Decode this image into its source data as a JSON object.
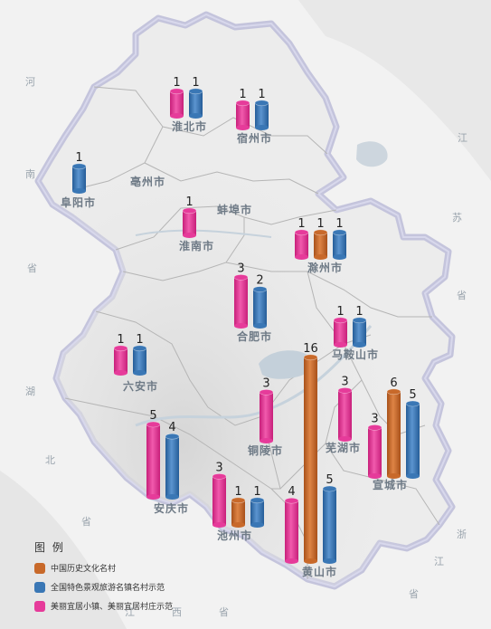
{
  "colors": {
    "history": "#c8692a",
    "scenic": "#3a77b5",
    "beautiful": "#e63b9a",
    "land": "#eeeeee",
    "border": "#c8c8e0",
    "inner_border": "#b8b8b8",
    "water": "#c6d2dc"
  },
  "legend": {
    "title": "图 例",
    "items": [
      {
        "key": "history",
        "label": "中国历史文化名村"
      },
      {
        "key": "scenic",
        "label": "全国特色景观旅游名镇名村示范"
      },
      {
        "key": "beautiful",
        "label": "美丽宜居小镇、美丽宜居村庄示范"
      }
    ]
  },
  "provinces": [
    {
      "text": "河"
    },
    {
      "text": "南"
    },
    {
      "text": "省"
    },
    {
      "text": "湖"
    },
    {
      "text": "北"
    },
    {
      "text": "省"
    },
    {
      "text": "江"
    },
    {
      "text": "苏"
    },
    {
      "text": "省"
    },
    {
      "text": "浙"
    },
    {
      "text": "江"
    },
    {
      "text": "省"
    },
    {
      "text": "江"
    },
    {
      "text": "西"
    },
    {
      "text": "省"
    }
  ],
  "cities": [
    {
      "name": "淮北市",
      "counts": [
        {
          "series": "beautiful",
          "value": 1
        },
        {
          "series": "scenic",
          "value": 1
        }
      ]
    },
    {
      "name": "宿州市",
      "counts": [
        {
          "series": "beautiful",
          "value": 1
        },
        {
          "series": "scenic",
          "value": 1
        }
      ]
    },
    {
      "name": "阜阳市",
      "counts": [
        {
          "series": "scenic",
          "value": 1
        }
      ]
    },
    {
      "name": "亳州市",
      "counts": []
    },
    {
      "name": "蚌埠市",
      "counts": []
    },
    {
      "name": "淮南市",
      "counts": [
        {
          "series": "beautiful",
          "value": 1
        }
      ]
    },
    {
      "name": "滁州市",
      "counts": [
        {
          "series": "beautiful",
          "value": 1
        },
        {
          "series": "history",
          "value": 1
        },
        {
          "series": "scenic",
          "value": 1
        }
      ]
    },
    {
      "name": "合肥市",
      "counts": [
        {
          "series": "beautiful",
          "value": 3
        },
        {
          "series": "scenic",
          "value": 2
        }
      ]
    },
    {
      "name": "马鞍山市",
      "counts": [
        {
          "series": "beautiful",
          "value": 1
        },
        {
          "series": "scenic",
          "value": 1
        }
      ]
    },
    {
      "name": "六安市",
      "counts": [
        {
          "series": "beautiful",
          "value": 1
        },
        {
          "series": "scenic",
          "value": 1
        }
      ]
    },
    {
      "name": "铜陵市",
      "counts": [
        {
          "series": "beautiful",
          "value": 3
        }
      ]
    },
    {
      "name": "芜湖市",
      "counts": [
        {
          "series": "beautiful",
          "value": 3
        }
      ]
    },
    {
      "name": "宣城市",
      "counts": [
        {
          "series": "beautiful",
          "value": 3
        },
        {
          "series": "history",
          "value": 6
        },
        {
          "series": "scenic",
          "value": 5
        }
      ]
    },
    {
      "name": "安庆市",
      "counts": [
        {
          "series": "beautiful",
          "value": 5
        },
        {
          "series": "scenic",
          "value": 4
        }
      ]
    },
    {
      "name": "池州市",
      "counts": [
        {
          "series": "beautiful",
          "value": 3
        },
        {
          "series": "history",
          "value": 1
        },
        {
          "series": "scenic",
          "value": 1
        }
      ]
    },
    {
      "name": "黄山市",
      "counts": [
        {
          "series": "beautiful",
          "value": 4
        },
        {
          "series": "history",
          "value": 16
        },
        {
          "series": "scenic",
          "value": 5
        }
      ]
    }
  ]
}
